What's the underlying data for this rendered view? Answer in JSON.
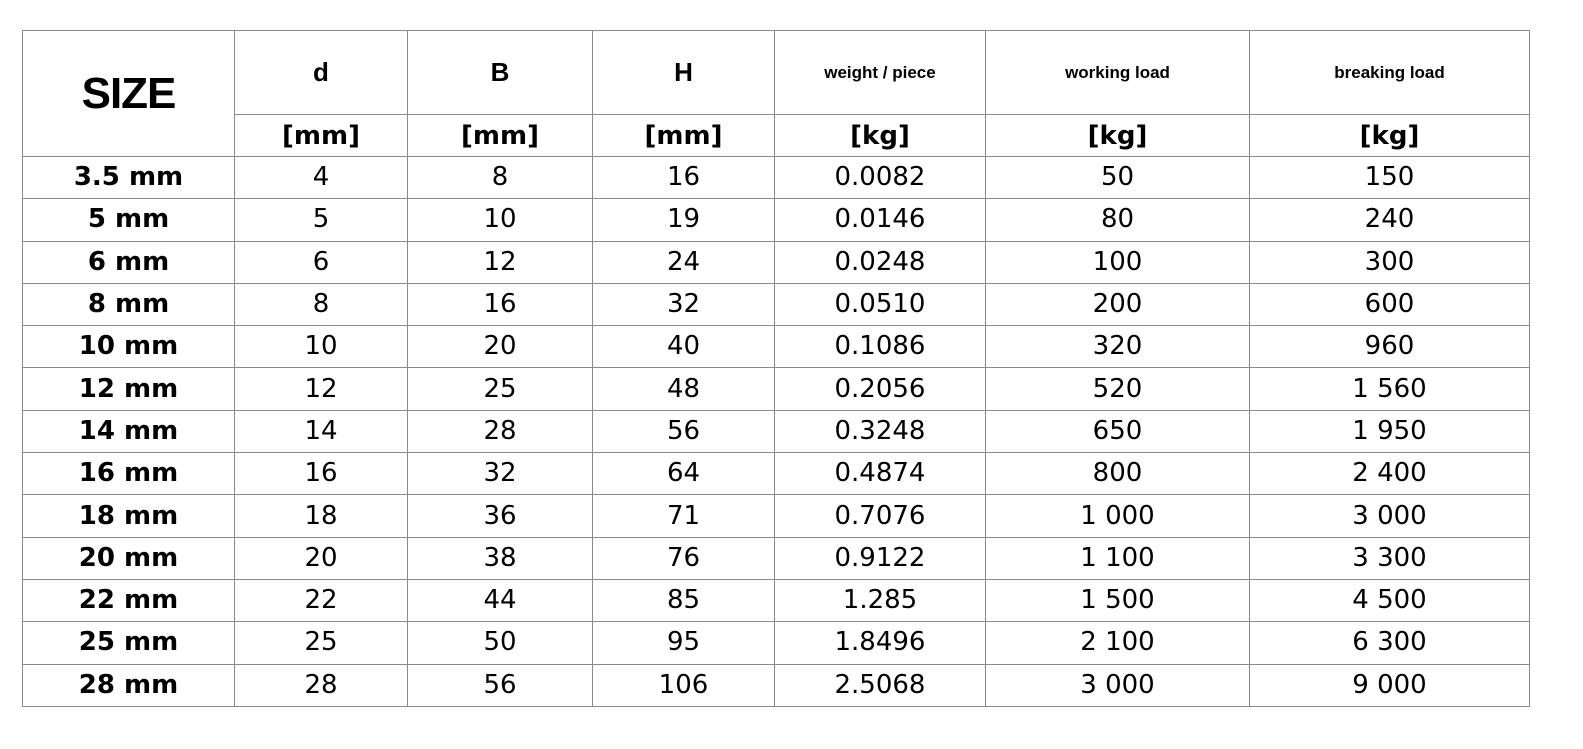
{
  "table": {
    "header": {
      "size": "SIZE",
      "columns": [
        "d",
        "B",
        "H",
        "weight / piece",
        "working load",
        "breaking load"
      ],
      "units": [
        "[mm]",
        "[mm]",
        "[mm]",
        "[kg]",
        "[kg]",
        "[kg]"
      ]
    },
    "rows": [
      [
        "3.5 mm",
        "4",
        "8",
        "16",
        "0.0082",
        "50",
        "150"
      ],
      [
        "5 mm",
        "5",
        "10",
        "19",
        "0.0146",
        "80",
        "240"
      ],
      [
        "6 mm",
        "6",
        "12",
        "24",
        "0.0248",
        "100",
        "300"
      ],
      [
        "8 mm",
        "8",
        "16",
        "32",
        "0.0510",
        "200",
        "600"
      ],
      [
        "10 mm",
        "10",
        "20",
        "40",
        "0.1086",
        "320",
        "960"
      ],
      [
        "12 mm",
        "12",
        "25",
        "48",
        "0.2056",
        "520",
        "1 560"
      ],
      [
        "14 mm",
        "14",
        "28",
        "56",
        "0.3248",
        "650",
        "1 950"
      ],
      [
        "16 mm",
        "16",
        "32",
        "64",
        "0.4874",
        "800",
        "2 400"
      ],
      [
        "18 mm",
        "18",
        "36",
        "71",
        "0.7076",
        "1 000",
        "3 000"
      ],
      [
        "20 mm",
        "20",
        "38",
        "76",
        "0.9122",
        "1 100",
        "3 300"
      ],
      [
        "22 mm",
        "22",
        "44",
        "85",
        "1.285",
        "1 500",
        "4 500"
      ],
      [
        "25 mm",
        "25",
        "50",
        "95",
        "1.8496",
        "2 100",
        "6 300"
      ],
      [
        "28 mm",
        "28",
        "56",
        "106",
        "2.5068",
        "3 000",
        "9 000"
      ]
    ]
  }
}
